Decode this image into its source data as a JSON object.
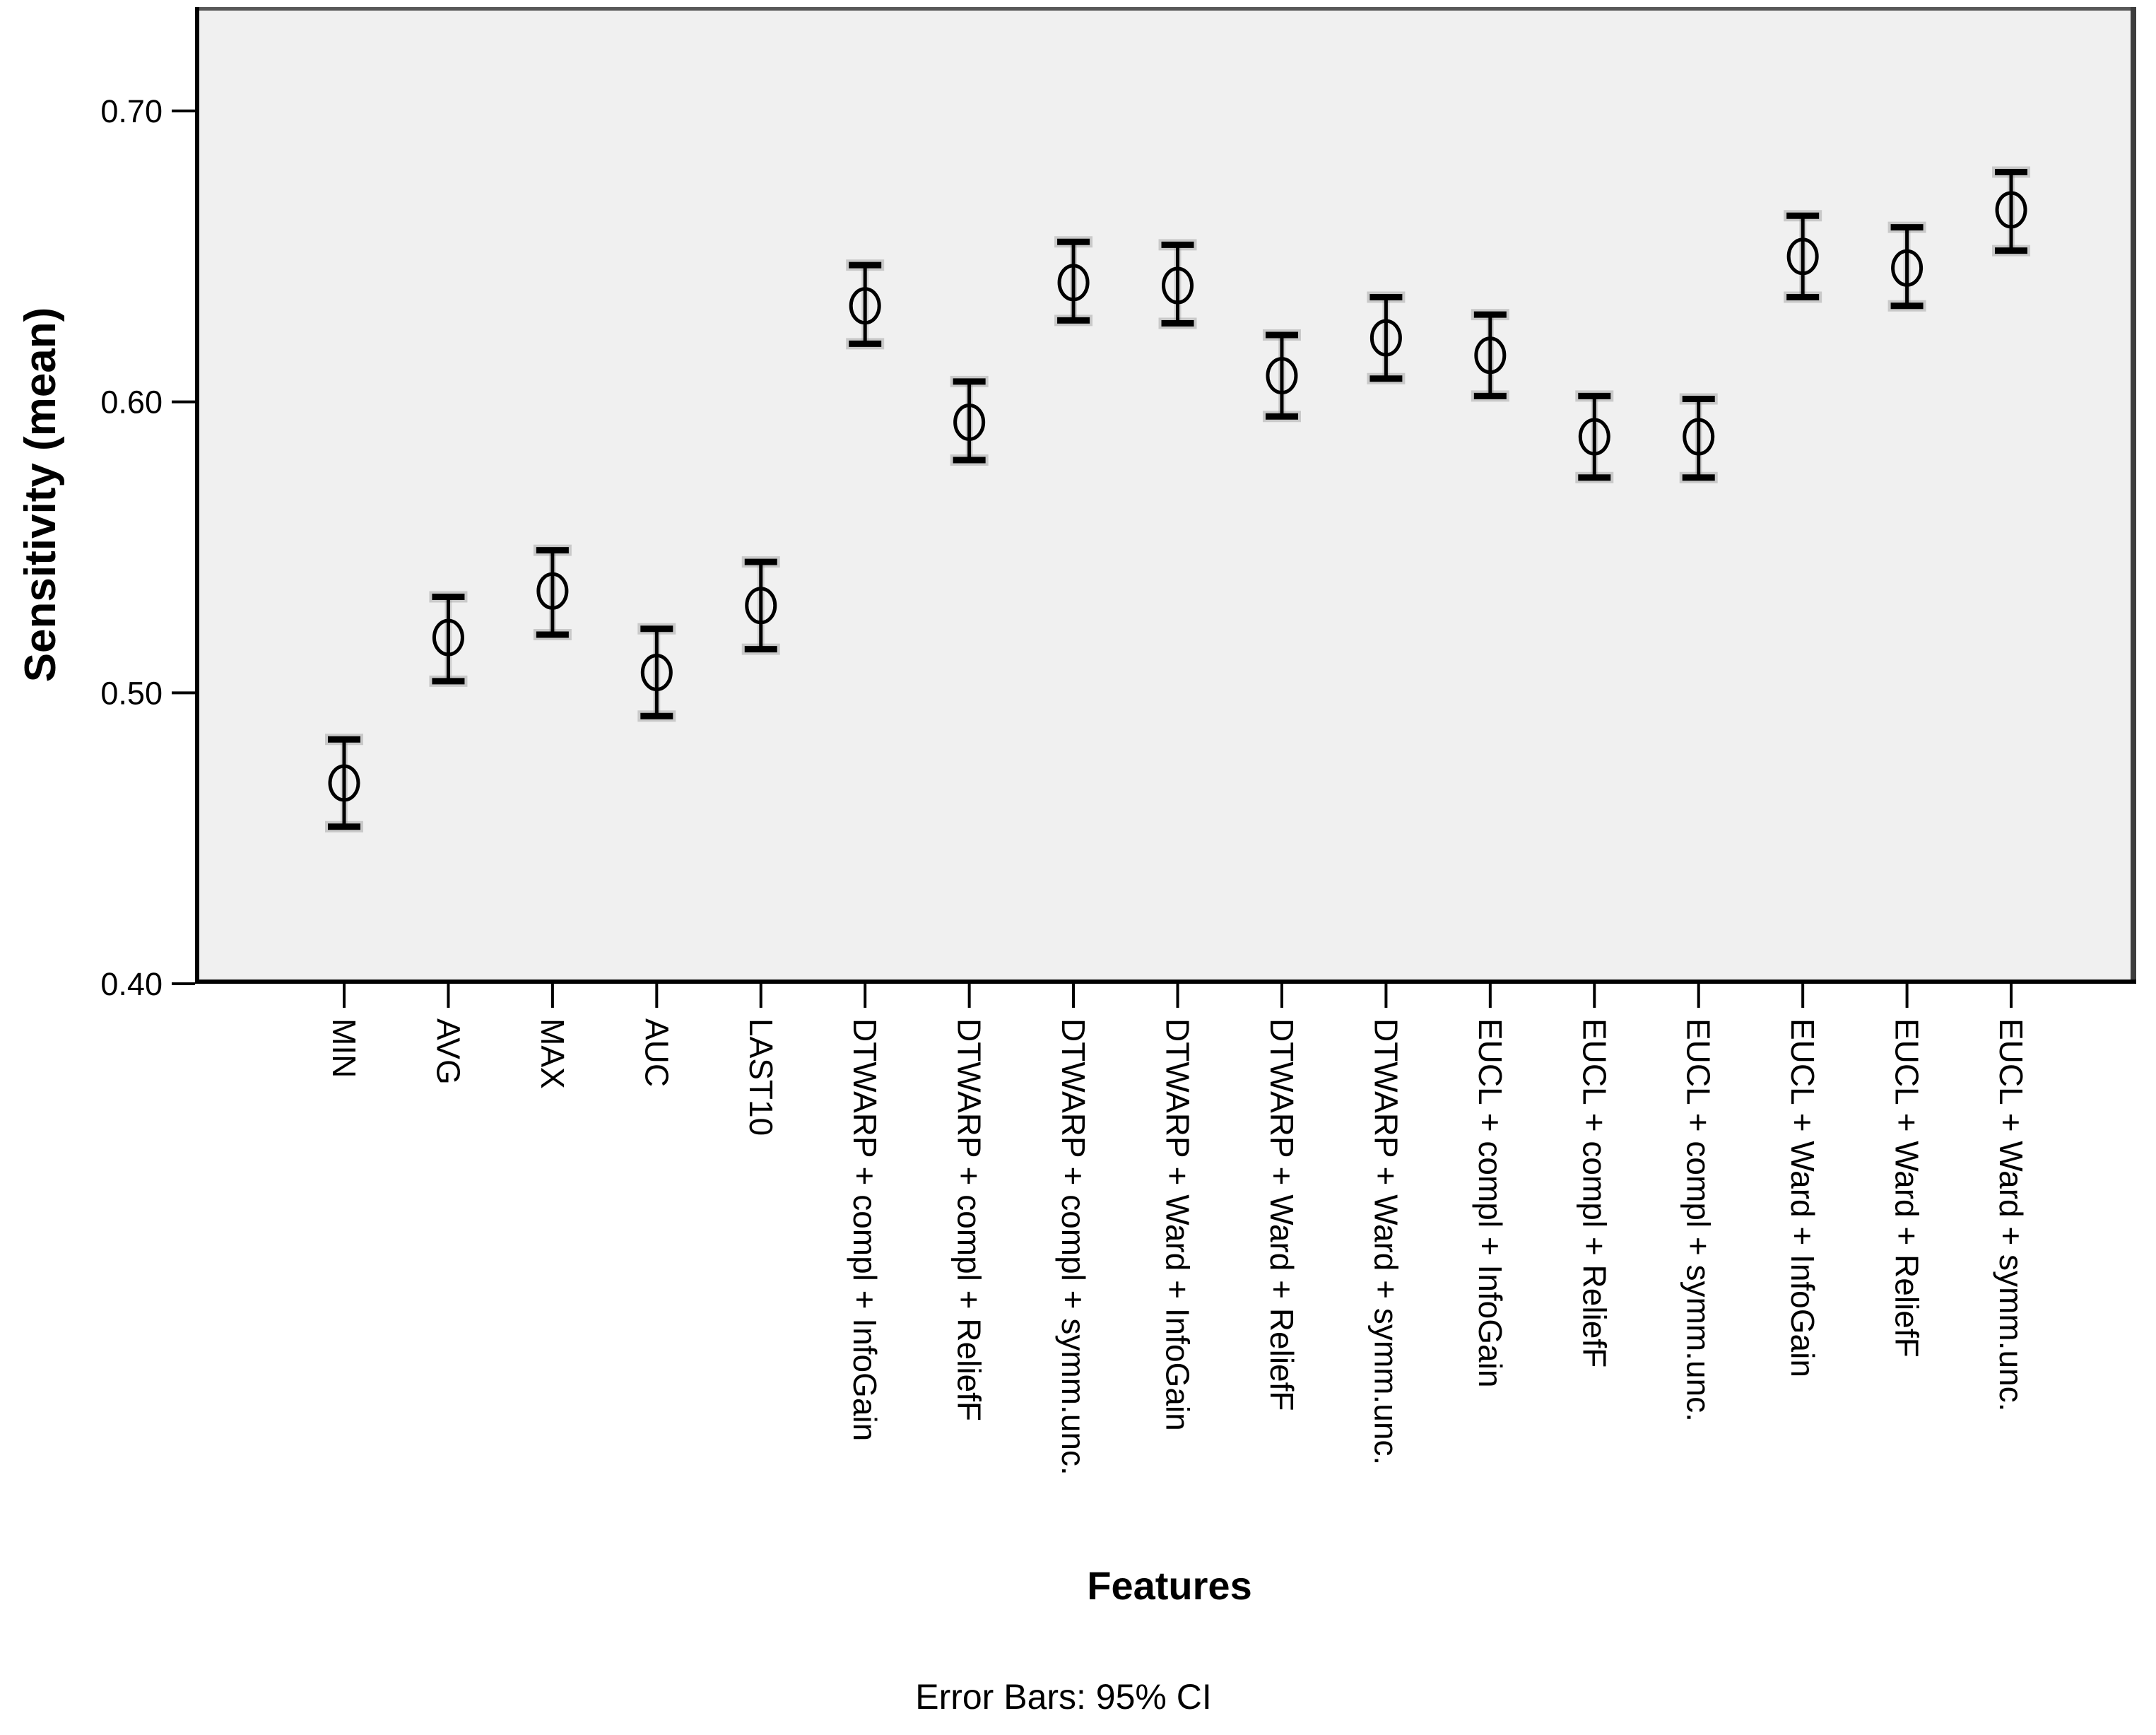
{
  "figure": {
    "footnote": "Error Bars: 95% CI"
  },
  "chart_data": {
    "type": "scatter",
    "subtype": "mean-error-bar-plot",
    "title": "",
    "xlabel": "Features",
    "ylabel": "Sensitivity (mean)",
    "error_bars": "95% CI",
    "grid": false,
    "legend": "none",
    "ylim": [
      0.4,
      0.735
    ],
    "yticks": [
      0.4,
      0.5,
      0.6,
      0.7
    ],
    "ytick_labels": [
      "0.40",
      "0.50",
      "0.60",
      "0.70"
    ],
    "marker": "open-circle",
    "colors": {
      "plot_background": "#f0f0f0",
      "marks": "#000000",
      "cap_halo": "#9a9a9a",
      "border_dark": "#3d3d3d",
      "border_top": "#585858"
    },
    "categories": [
      "MIN",
      "AVG",
      "MAX",
      "AUC",
      "LAST10",
      "DTWARP + compl + InfoGain",
      "DTWARP + compl + ReliefF",
      "DTWARP + compl + symm.unc.",
      "DTWARP + Ward + InfoGain",
      "DTWARP + Ward + ReliefF",
      "DTWARP + Ward + symm.unc.",
      "EUCL + compl + InfoGain",
      "EUCL + compl + ReliefF",
      "EUCL + compl + symm.unc.",
      "EUCL + Ward + InfoGain",
      "EUCL + Ward + ReliefF",
      "EUCL + Ward + symm.unc."
    ],
    "series": [
      {
        "name": "Sensitivity (mean)",
        "means": [
          0.469,
          0.519,
          0.535,
          0.507,
          0.53,
          0.633,
          0.593,
          0.641,
          0.64,
          0.609,
          0.622,
          0.616,
          0.588,
          0.588,
          0.65,
          0.646,
          0.666
        ],
        "ci_low": [
          0.454,
          0.504,
          0.52,
          0.492,
          0.515,
          0.62,
          0.58,
          0.628,
          0.627,
          0.595,
          0.608,
          0.602,
          0.574,
          0.574,
          0.636,
          0.633,
          0.652
        ],
        "ci_high": [
          0.484,
          0.533,
          0.549,
          0.522,
          0.545,
          0.647,
          0.607,
          0.655,
          0.654,
          0.623,
          0.636,
          0.63,
          0.602,
          0.601,
          0.664,
          0.66,
          0.679
        ]
      }
    ]
  }
}
